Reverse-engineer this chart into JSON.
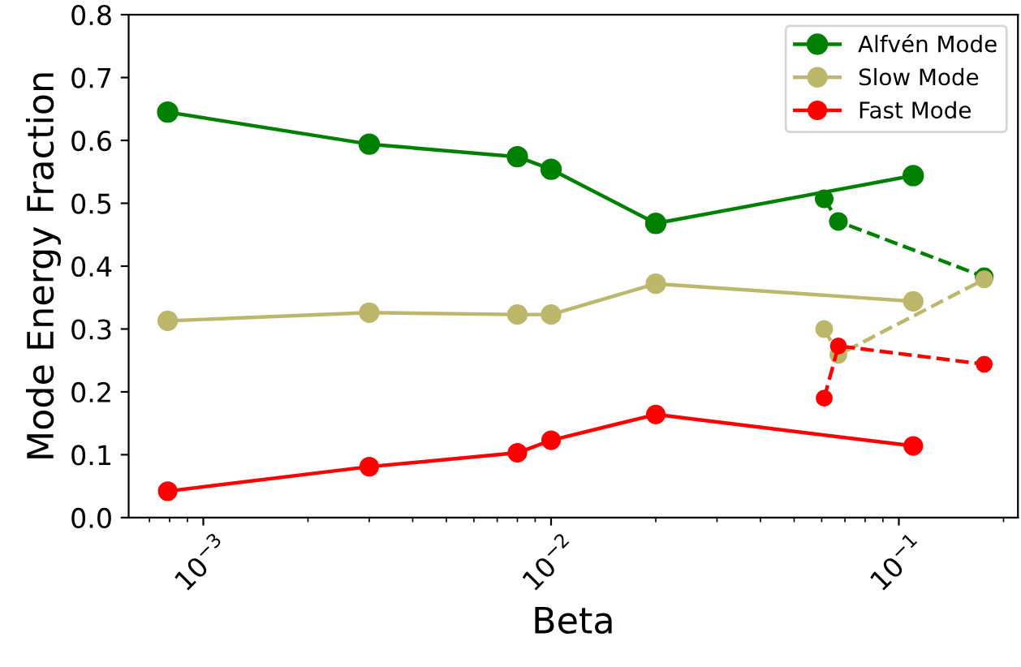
{
  "chart_data": {
    "type": "line",
    "xlabel": "Beta",
    "ylabel": "Mode Energy Fraction",
    "log": "x",
    "marker": "circle",
    "legend": "top right",
    "grid": false,
    "xlim": [
      0.00061,
      0.22
    ],
    "ylim": [
      0.0,
      0.8
    ],
    "xticks": [
      {
        "value": 0.001,
        "label": "10$^{−3}$"
      },
      {
        "value": 0.01,
        "label": "10$^{−2}$"
      },
      {
        "value": 0.1,
        "label": "10$^{−1}$"
      }
    ],
    "yticks": [
      {
        "value": 0.0,
        "label": "0.0"
      },
      {
        "value": 0.1,
        "label": "0.1"
      },
      {
        "value": 0.2,
        "label": "0.2"
      },
      {
        "value": 0.3,
        "label": "0.3"
      },
      {
        "value": 0.4,
        "label": "0.4"
      },
      {
        "value": 0.5,
        "label": "0.5"
      },
      {
        "value": 0.6,
        "label": "0.6"
      },
      {
        "value": 0.7,
        "label": "0.7"
      },
      {
        "value": 0.8,
        "label": "0.8"
      }
    ],
    "series": [
      {
        "name": "Alfvén Mode",
        "color": "#008000",
        "line_style": "solid",
        "x": [
          0.00079,
          0.003,
          0.008,
          0.01,
          0.02,
          0.11
        ],
        "values": [
          0.645,
          0.594,
          0.574,
          0.554,
          0.468,
          0.544
        ]
      },
      {
        "name": "Slow Mode",
        "color": "#bdb76b",
        "line_style": "solid",
        "x": [
          0.00079,
          0.003,
          0.008,
          0.01,
          0.02,
          0.11
        ],
        "values": [
          0.313,
          0.326,
          0.323,
          0.323,
          0.372,
          0.344
        ]
      },
      {
        "name": "Fast Mode",
        "color": "#ff0000",
        "line_style": "solid",
        "x": [
          0.00079,
          0.003,
          0.008,
          0.01,
          0.02,
          0.11
        ],
        "values": [
          0.042,
          0.081,
          0.103,
          0.123,
          0.164,
          0.114
        ]
      },
      {
        "color": "#008000",
        "line_style": "dashed",
        "x": [
          0.061,
          0.067,
          0.176
        ],
        "values": [
          0.507,
          0.471,
          0.383
        ]
      },
      {
        "color": "#bdb76b",
        "line_style": "dashed",
        "x": [
          0.061,
          0.067,
          0.176
        ],
        "values": [
          0.3,
          0.259,
          0.379
        ]
      },
      {
        "color": "#ff0000",
        "line_style": "dashed",
        "x": [
          0.061,
          0.067,
          0.176
        ],
        "values": [
          0.19,
          0.273,
          0.244
        ]
      }
    ]
  }
}
